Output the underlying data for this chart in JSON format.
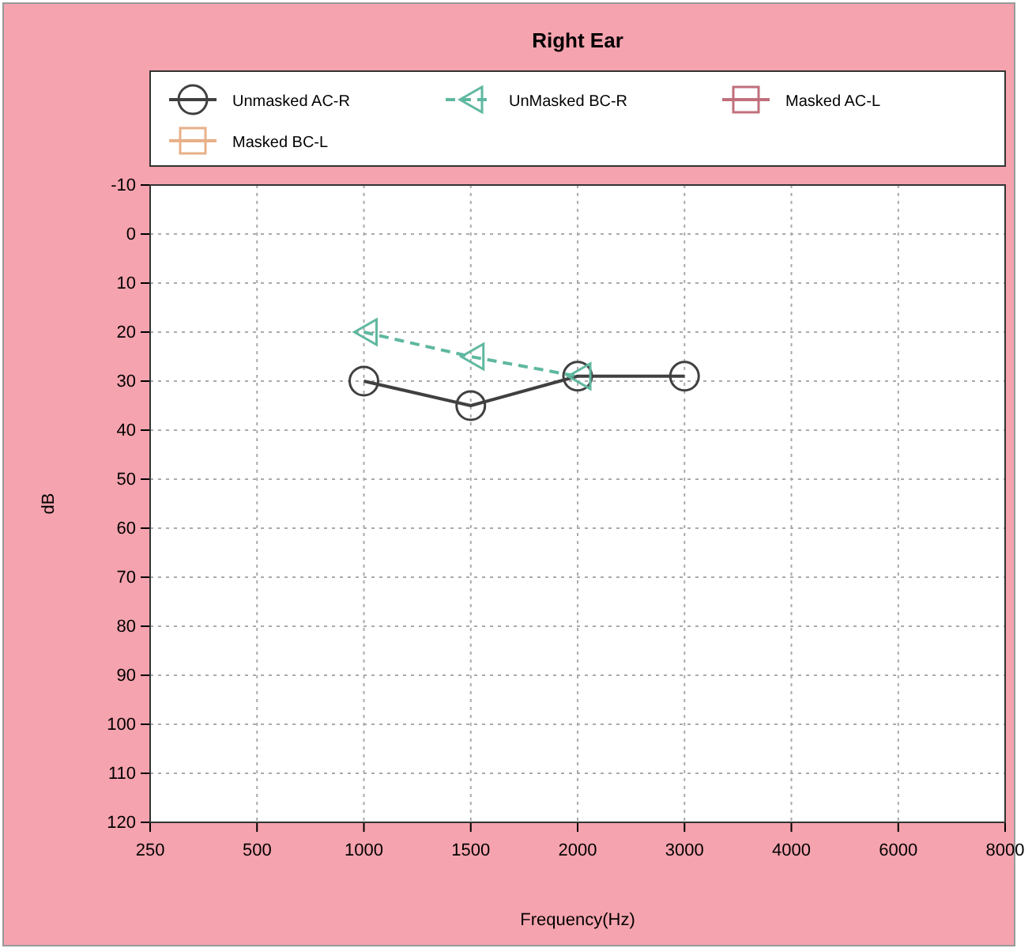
{
  "chart_data": {
    "type": "line",
    "title": "Right Ear",
    "xlabel": "Frequency(Hz)",
    "ylabel": "dB",
    "categories": [
      "250",
      "500",
      "1000",
      "1500",
      "2000",
      "3000",
      "4000",
      "6000",
      "8000"
    ],
    "ylim": [
      120,
      -10
    ],
    "yticks": [
      -10,
      0,
      10,
      20,
      30,
      40,
      50,
      60,
      70,
      80,
      90,
      100,
      110,
      120
    ],
    "grid": true,
    "legend": "top",
    "series": [
      {
        "name": "Unmasked AC-R",
        "color": "#404040",
        "marker": "circle",
        "line_style": "solid",
        "values": [
          null,
          null,
          30,
          35,
          29,
          29,
          null,
          null,
          null
        ]
      },
      {
        "name": "UnMasked BC-R",
        "color": "#5fb8a0",
        "marker": "triangle",
        "line_style": "dashed",
        "values": [
          null,
          null,
          20,
          25,
          29,
          null,
          null,
          null,
          null
        ]
      },
      {
        "name": "Masked AC-L",
        "color": "#c0707c",
        "marker": "square",
        "line_style": "solid",
        "values": [
          null,
          null,
          null,
          null,
          null,
          null,
          null,
          null,
          null
        ]
      },
      {
        "name": "Masked BC-L",
        "color": "#e8b088",
        "marker": "square",
        "line_style": "solid",
        "values": [
          null,
          null,
          null,
          null,
          null,
          null,
          null,
          null,
          null
        ]
      }
    ]
  }
}
